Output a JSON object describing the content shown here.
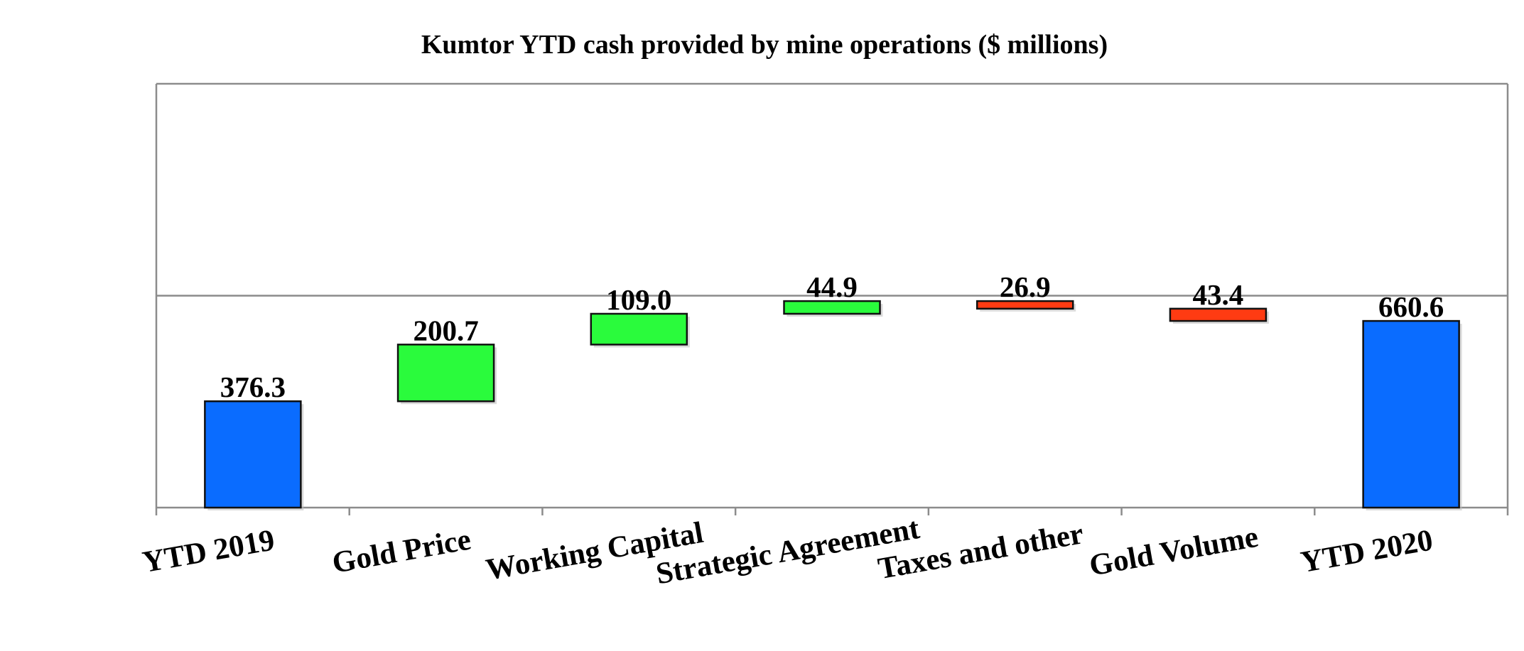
{
  "chart_data": {
    "type": "bar",
    "subtype": "waterfall",
    "title": "Kumtor YTD cash provided by mine operations ($ millions)",
    "xlabel": "",
    "ylabel": "",
    "categories": [
      "YTD 2019",
      "Gold Price",
      "Working Capital",
      "Strategic Agreement",
      "Taxes and other",
      "Gold Volume",
      "YTD 2020"
    ],
    "values": [
      376.3,
      200.7,
      109.0,
      44.9,
      -26.9,
      -43.4,
      660.6
    ],
    "value_labels": [
      "376.3",
      "200.7",
      "109.0",
      "44.9",
      "26.9",
      "43.4",
      "660.6"
    ],
    "kinds": [
      "total",
      "increase",
      "increase",
      "increase",
      "decrease",
      "decrease",
      "total"
    ],
    "ylim": [
      0,
      1500
    ],
    "y_gridlines": [
      750,
      1500
    ],
    "grid": true,
    "tick_labels_y_shown": false,
    "legend": "none",
    "colors": {
      "total": "#0a6cff",
      "increase": "#2afb3c",
      "decrease": "#ff3b12",
      "gridline": "#8c8c8c",
      "axis": "#8c8c8c"
    }
  }
}
